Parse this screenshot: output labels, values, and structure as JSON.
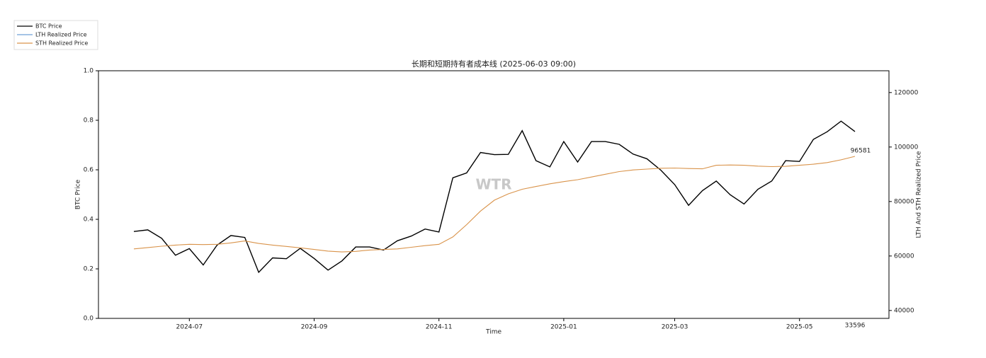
{
  "chart_data": {
    "type": "line",
    "title": "长期和短期持有者成本线 (2025-06-03 09:00)",
    "x_label": "Time",
    "y_label": "BTC Price",
    "y2_label": "LTH And STH Realized Price",
    "watermark": "WTR",
    "footnote": "33596",
    "x": [
      "2024-06",
      "2024-06",
      "2024-06",
      "2024-06",
      "2024-07",
      "2024-07",
      "2024-07",
      "2024-07",
      "2024-07",
      "2024-08",
      "2024-08",
      "2024-08",
      "2024-08",
      "2024-09",
      "2024-09",
      "2024-09",
      "2024-09",
      "2024-09",
      "2024-10",
      "2024-10",
      "2024-10",
      "2024-10",
      "2024-11",
      "2024-11",
      "2024-11",
      "2024-11",
      "2024-12",
      "2024-12",
      "2024-12",
      "2024-12",
      "2024-12",
      "2025-01",
      "2025-01",
      "2025-01",
      "2025-01",
      "2025-02",
      "2025-02",
      "2025-02",
      "2025-02",
      "2025-03",
      "2025-03",
      "2025-03",
      "2025-03",
      "2025-03",
      "2025-04",
      "2025-04",
      "2025-04",
      "2025-04",
      "2025-05",
      "2025-05",
      "2025-05",
      "2025-05",
      "2025-06"
    ],
    "xticks": [
      "2024-07",
      "2024-09",
      "2024-11",
      "2025-01",
      "2025-03",
      "2025-05"
    ],
    "ylim": [
      0,
      1
    ],
    "yticks": [
      {
        "value": 0,
        "label": "0.0"
      },
      0.2,
      0.4,
      0.6,
      0.8,
      {
        "value": 1,
        "label": "1.0"
      }
    ],
    "y2lim": [
      37100,
      128000
    ],
    "y2ticks": [
      40000,
      60000,
      80000,
      100000,
      120000
    ],
    "legend": "upper left",
    "series": [
      {
        "name": "BTC Price",
        "color": "#000000",
        "axis": "y2",
        "values": [
          69000,
          69600,
          66500,
          60300,
          62700,
          56700,
          64000,
          67500,
          66800,
          54000,
          59300,
          59000,
          62800,
          59100,
          54800,
          58200,
          63300,
          63300,
          62200,
          65600,
          67300,
          69900,
          68800,
          88700,
          90500,
          98000,
          97200,
          97300,
          106000,
          95000,
          92700,
          102000,
          94500,
          102000,
          102000,
          101000,
          97400,
          95700,
          91500,
          86200,
          78600,
          84000,
          87500,
          82500,
          79100,
          84500,
          87500,
          95000,
          94700,
          102800,
          105600,
          109500,
          105700
        ]
      },
      {
        "name": "STH Realized Price",
        "color": "#d9934a",
        "axis": "y2",
        "values": [
          62600,
          63100,
          63600,
          64000,
          64300,
          64200,
          64300,
          64800,
          65500,
          64600,
          64000,
          63500,
          63000,
          62400,
          61800,
          61500,
          61700,
          62200,
          62400,
          62600,
          63200,
          63800,
          64300,
          67000,
          71500,
          76500,
          80500,
          82800,
          84500,
          85500,
          86500,
          87300,
          88000,
          89000,
          90000,
          91000,
          91600,
          91900,
          92200,
          92300,
          92100,
          92000,
          93300,
          93400,
          93300,
          93000,
          92800,
          92900,
          93300,
          93700,
          94300,
          95300,
          96581
        ]
      },
      {
        "name": "LTH Realized Price",
        "color": "#6fa0d8",
        "axis": "y2"
      }
    ]
  }
}
